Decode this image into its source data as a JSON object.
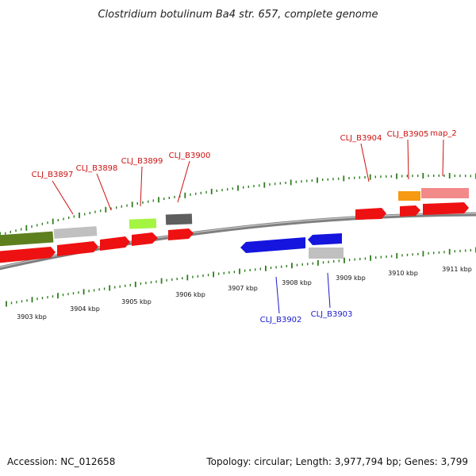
{
  "title": "Clostridium botulinum Ba4 str. 657, complete genome",
  "footer": {
    "accession": "Accession: NC_012658",
    "summary": "Topology: circular; Length: 3,977,794 bp; Genes: 3,799"
  },
  "colors": {
    "backbone": "#7f7f7f",
    "tick": "#2e7d1e",
    "forward_gene": "#ee1111",
    "reverse_gene": "#1515dd",
    "upper_label": "#cc1111",
    "lower_label": "#1a1acc"
  },
  "kbp_labels": [
    "3903 kbp",
    "3904 kbp",
    "3905 kbp",
    "3906 kbp",
    "3907 kbp",
    "3908 kbp",
    "3909 kbp",
    "3910 kbp",
    "3911 kbp"
  ],
  "gene_labels_top": [
    "CLJ_B3897",
    "CLJ_B3898",
    "CLJ_B3899",
    "CLJ_B3900",
    "CLJ_B3904",
    "CLJ_B3905",
    "map_2"
  ],
  "gene_labels_bottom": [
    "CLJ_B3902",
    "CLJ_B3903"
  ]
}
